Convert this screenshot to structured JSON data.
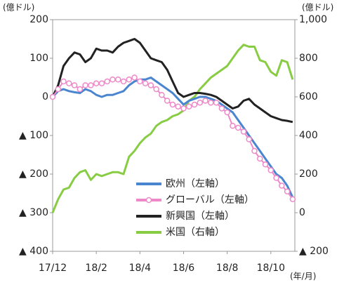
{
  "chart_data": {
    "type": "line",
    "y_unit": "(億ドル)",
    "y2_unit": "(億ドル)",
    "x_unit": "(年/月)",
    "x": [
      0,
      0.25,
      0.5,
      0.75,
      1,
      1.25,
      1.5,
      1.75,
      2,
      2.25,
      2.5,
      2.75,
      3,
      3.25,
      3.5,
      3.75,
      4,
      4.25,
      4.5,
      4.75,
      5,
      5.25,
      5.5,
      5.75,
      6,
      6.25,
      6.5,
      6.75,
      7,
      7.25,
      7.5,
      7.75,
      8,
      8.25,
      8.5,
      8.75,
      9,
      9.25,
      9.5,
      9.75,
      10,
      10.25,
      10.5,
      10.75,
      11
    ],
    "xlim": [
      0,
      11.1
    ],
    "xticks": [
      {
        "value": 0,
        "label": "17/12"
      },
      {
        "value": 2,
        "label": "18/2"
      },
      {
        "value": 4,
        "label": "18/4"
      },
      {
        "value": 6,
        "label": "18/6"
      },
      {
        "value": 8,
        "label": "18/8"
      },
      {
        "value": 10,
        "label": "18/10"
      }
    ],
    "ylim": [
      -400,
      200
    ],
    "yticks": [
      200,
      100,
      0,
      {
        "value": -100,
        "label": "▲ 100"
      },
      {
        "value": -200,
        "label": "▲ 200"
      },
      {
        "value": -300,
        "label": "▲ 300"
      },
      {
        "value": -400,
        "label": "▲ 400"
      }
    ],
    "y2lim": [
      -200,
      1000
    ],
    "y2ticks": [
      {
        "value": 1000,
        "label": "1,000"
      },
      800,
      600,
      400,
      200,
      0,
      {
        "value": -200,
        "label": "▲ 200"
      }
    ],
    "grid": false,
    "series": [
      {
        "name": "欧州（左軸）",
        "color": "#4a86d0",
        "values": [
          0,
          15,
          20,
          15,
          12,
          10,
          20,
          15,
          5,
          0,
          5,
          5,
          10,
          15,
          30,
          40,
          45,
          45,
          50,
          40,
          30,
          20,
          10,
          -5,
          -20,
          -10,
          -5,
          0,
          0,
          -5,
          -10,
          -20,
          -30,
          -40,
          -60,
          -80,
          -100,
          -120,
          -140,
          -160,
          -180,
          -200,
          -210,
          -230,
          -260
        ]
      },
      {
        "name": "グローバル（左軸）",
        "color": "#ee88c8",
        "marker": "circle",
        "values": [
          0,
          20,
          40,
          35,
          30,
          20,
          30,
          30,
          35,
          35,
          40,
          45,
          45,
          40,
          45,
          50,
          40,
          35,
          30,
          20,
          5,
          -10,
          -20,
          -25,
          -30,
          -25,
          -20,
          -15,
          -10,
          -15,
          -15,
          -30,
          -40,
          -75,
          -80,
          -90,
          -110,
          -140,
          -160,
          -175,
          -190,
          -210,
          -230,
          -245,
          -265
        ]
      },
      {
        "name": "新興国（左軸）",
        "color": "#222222",
        "values": [
          0,
          30,
          80,
          100,
          115,
          110,
          90,
          100,
          125,
          120,
          120,
          115,
          130,
          140,
          145,
          150,
          140,
          120,
          100,
          95,
          90,
          70,
          40,
          10,
          0,
          5,
          10,
          10,
          8,
          5,
          0,
          -10,
          -20,
          -30,
          -25,
          -10,
          -5,
          -20,
          -30,
          -40,
          -50,
          -55,
          -60,
          -62,
          -65
        ]
      },
      {
        "name": "米国（右軸）",
        "color": "#88cc44",
        "axis": "y2",
        "values": [
          0,
          70,
          120,
          130,
          180,
          210,
          220,
          170,
          200,
          190,
          200,
          210,
          210,
          200,
          290,
          320,
          360,
          390,
          410,
          450,
          470,
          480,
          500,
          510,
          530,
          580,
          600,
          640,
          670,
          700,
          720,
          740,
          760,
          800,
          840,
          870,
          860,
          860,
          790,
          780,
          730,
          710,
          790,
          780,
          690
        ]
      }
    ]
  }
}
